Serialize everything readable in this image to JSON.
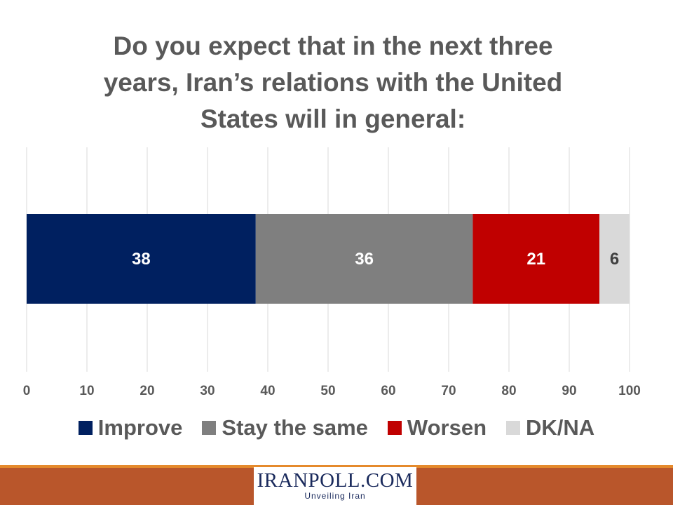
{
  "title_lines": [
    "Do you expect that in the next three",
    "years, Iran’s relations with the United",
    "States will in general:"
  ],
  "chart_data": {
    "type": "bar",
    "orientation": "horizontal",
    "stacked": true,
    "title": "Do you expect that in the next three years, Iran’s relations with the United States will in general:",
    "categories": [
      ""
    ],
    "series": [
      {
        "name": "Improve",
        "values": [
          38
        ],
        "color": "#002060"
      },
      {
        "name": "Stay the same",
        "values": [
          36
        ],
        "color": "#7f7f7f"
      },
      {
        "name": "Worsen",
        "values": [
          21
        ],
        "color": "#c00000"
      },
      {
        "name": "DK/NA",
        "values": [
          6
        ],
        "color": "#d9d9d9"
      }
    ],
    "xlim": [
      0,
      100
    ],
    "xticks": [
      "0",
      "10",
      "20",
      "30",
      "40",
      "50",
      "60",
      "70",
      "80",
      "90",
      "100"
    ],
    "data_labels": [
      "38",
      "36",
      "21",
      "6"
    ],
    "grid": true,
    "legend_position": "bottom"
  },
  "logo": {
    "main": "IRANPOLL.COM",
    "sub": "Unveiling Iran"
  },
  "colors": {
    "footer_band": "#b9562b",
    "footer_line": "#e58a2c"
  }
}
